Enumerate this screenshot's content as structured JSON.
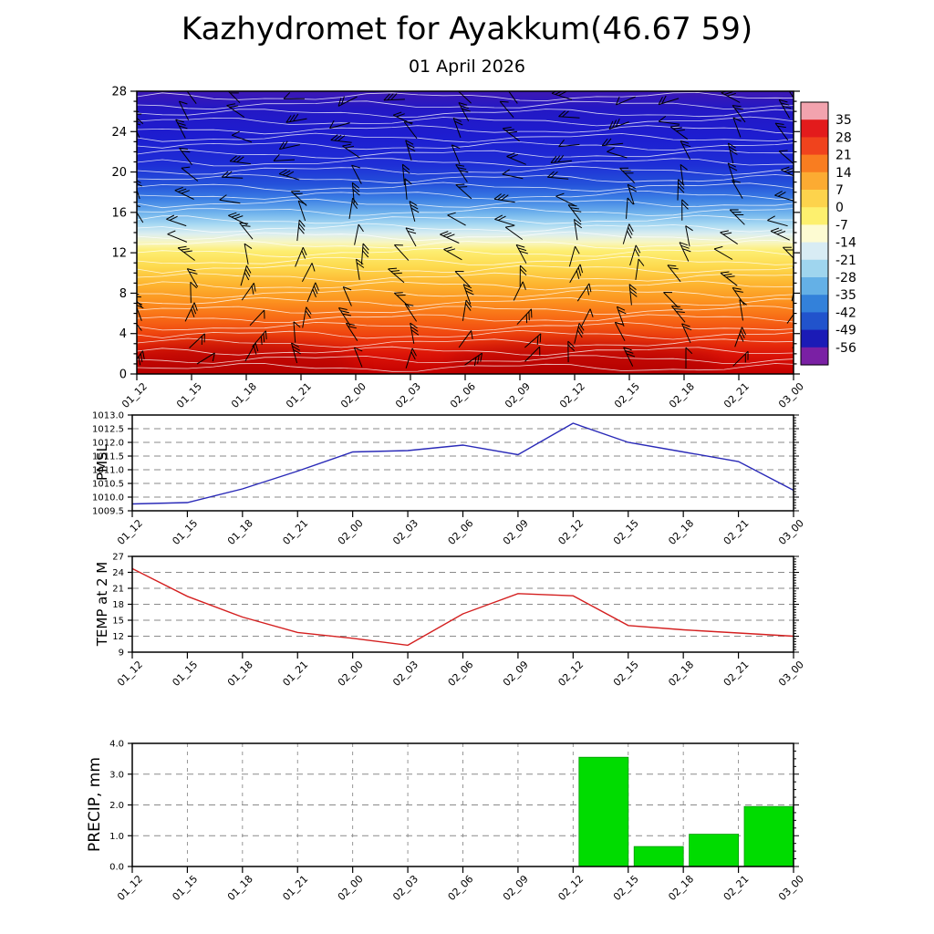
{
  "header": {
    "title": "Kazhydromet for Ayakkum(46.67 59)",
    "subtitle": "01 April 2026"
  },
  "chart_data": [
    {
      "id": "upper_air_section",
      "type": "heatmap",
      "description": "Time-height temperature cross-section with white temperature contour lines and black wind barbs",
      "x_labels": [
        "01_12",
        "01_15",
        "01_18",
        "01_21",
        "02_00",
        "02_03",
        "02_06",
        "02_09",
        "02_12",
        "02_15",
        "02_18",
        "02_21",
        "03_00"
      ],
      "ylim": [
        0,
        28
      ],
      "yticks": [
        0,
        4,
        8,
        12,
        16,
        20,
        24,
        28
      ],
      "ytick_labels": [
        "0",
        "4",
        "8",
        "12",
        "16",
        "20",
        "24",
        "28"
      ],
      "colorbar_ticks": [
        "35",
        "28",
        "21",
        "14",
        "7",
        "0",
        "-7",
        "-14",
        "-21",
        "-28",
        "-35",
        "-42",
        "-49",
        "-56"
      ],
      "colorbar_colors": [
        "#f2a3ae",
        "#e31b1c",
        "#f0431d",
        "#f97d20",
        "#fcab32",
        "#fdd34c",
        "#fdf06e",
        "#fdfbd2",
        "#d8ecf4",
        "#9fd5ee",
        "#64b0e6",
        "#3381da",
        "#2153cc",
        "#1b1bb6",
        "#7a20a4"
      ],
      "contour_color": "#ffffff",
      "wind_barbs": true,
      "gradient_stops": [
        [
          0.0,
          "#3d18b4"
        ],
        [
          0.06,
          "#2418c4"
        ],
        [
          0.16,
          "#1d1dd0"
        ],
        [
          0.26,
          "#1e2ed6"
        ],
        [
          0.33,
          "#2452da"
        ],
        [
          0.38,
          "#3b7ee4"
        ],
        [
          0.43,
          "#6fb2ec"
        ],
        [
          0.47,
          "#a6d8f2"
        ],
        [
          0.505,
          "#dceef0"
        ],
        [
          0.535,
          "#f8f6c0"
        ],
        [
          0.565,
          "#fdee72"
        ],
        [
          0.62,
          "#fdda4e"
        ],
        [
          0.68,
          "#fdb631"
        ],
        [
          0.74,
          "#fc9420"
        ],
        [
          0.8,
          "#f86c16"
        ],
        [
          0.87,
          "#ee3e0e"
        ],
        [
          0.93,
          "#dc1408"
        ],
        [
          1.0,
          "#c40000"
        ]
      ]
    },
    {
      "id": "pmsl",
      "type": "line",
      "ylabel": "PMSL",
      "line_color": "#2a2ab8",
      "x_labels": [
        "01_12",
        "01_15",
        "01_18",
        "01_21",
        "02_00",
        "02_03",
        "02_06",
        "02_09",
        "02_12",
        "02_15",
        "02_18",
        "02_21",
        "03_00"
      ],
      "ylim": [
        1009.5,
        1013.0
      ],
      "yticks": [
        1009.5,
        1010.0,
        1010.5,
        1011.0,
        1011.5,
        1012.0,
        1012.5,
        1013.0
      ],
      "ytick_labels": [
        "1009.5",
        "1010.0",
        "1010.5",
        "1011.0",
        "1011.5",
        "1012.0",
        "1012.5",
        "1013.0"
      ],
      "values": [
        1009.75,
        1009.8,
        1010.3,
        1010.95,
        1011.65,
        1011.7,
        1011.9,
        1011.55,
        1012.7,
        1012.0,
        1011.65,
        1011.3,
        1010.25
      ],
      "right_minor_tick": 0.1,
      "right_major_tick": 0.5
    },
    {
      "id": "temp_2m",
      "type": "line",
      "ylabel": "TEMP at 2 M",
      "line_color": "#d42020",
      "x_labels": [
        "01_12",
        "01_15",
        "01_18",
        "01_21",
        "02_00",
        "02_03",
        "02_06",
        "02_09",
        "02_12",
        "02_15",
        "02_18",
        "02_21",
        "03_00"
      ],
      "ylim": [
        9,
        27
      ],
      "yticks": [
        9,
        12,
        15,
        18,
        21,
        24,
        27
      ],
      "ytick_labels": [
        "9",
        "12",
        "15",
        "18",
        "21",
        "24",
        "27"
      ],
      "values": [
        24.7,
        19.5,
        15.6,
        12.7,
        11.6,
        10.3,
        16.2,
        20.0,
        19.6,
        14.0,
        13.2,
        12.6,
        12.0
      ],
      "right_minor_tick": 0.5,
      "right_major_tick": 3
    },
    {
      "id": "precip",
      "type": "bar",
      "ylabel": "PRECIP, mm",
      "bar_color": "#00dc00",
      "bar_edge_color": "#009900",
      "x_labels": [
        "01_12",
        "01_15",
        "01_18",
        "01_21",
        "02_00",
        "02_03",
        "02_06",
        "02_09",
        "02_12",
        "02_15",
        "02_18",
        "02_21",
        "03_00"
      ],
      "ylim": [
        0,
        4
      ],
      "yticks": [
        0,
        1,
        2,
        3,
        4
      ],
      "ytick_labels": [
        "0.0",
        "1.0",
        "2.0",
        "3.0",
        "4.0"
      ],
      "values": [
        0,
        0,
        0,
        0,
        0,
        0,
        0,
        0,
        0,
        3.55,
        0.65,
        1.05,
        1.95
      ],
      "right_minor_tick": 0.25,
      "right_major_tick": 1
    }
  ]
}
